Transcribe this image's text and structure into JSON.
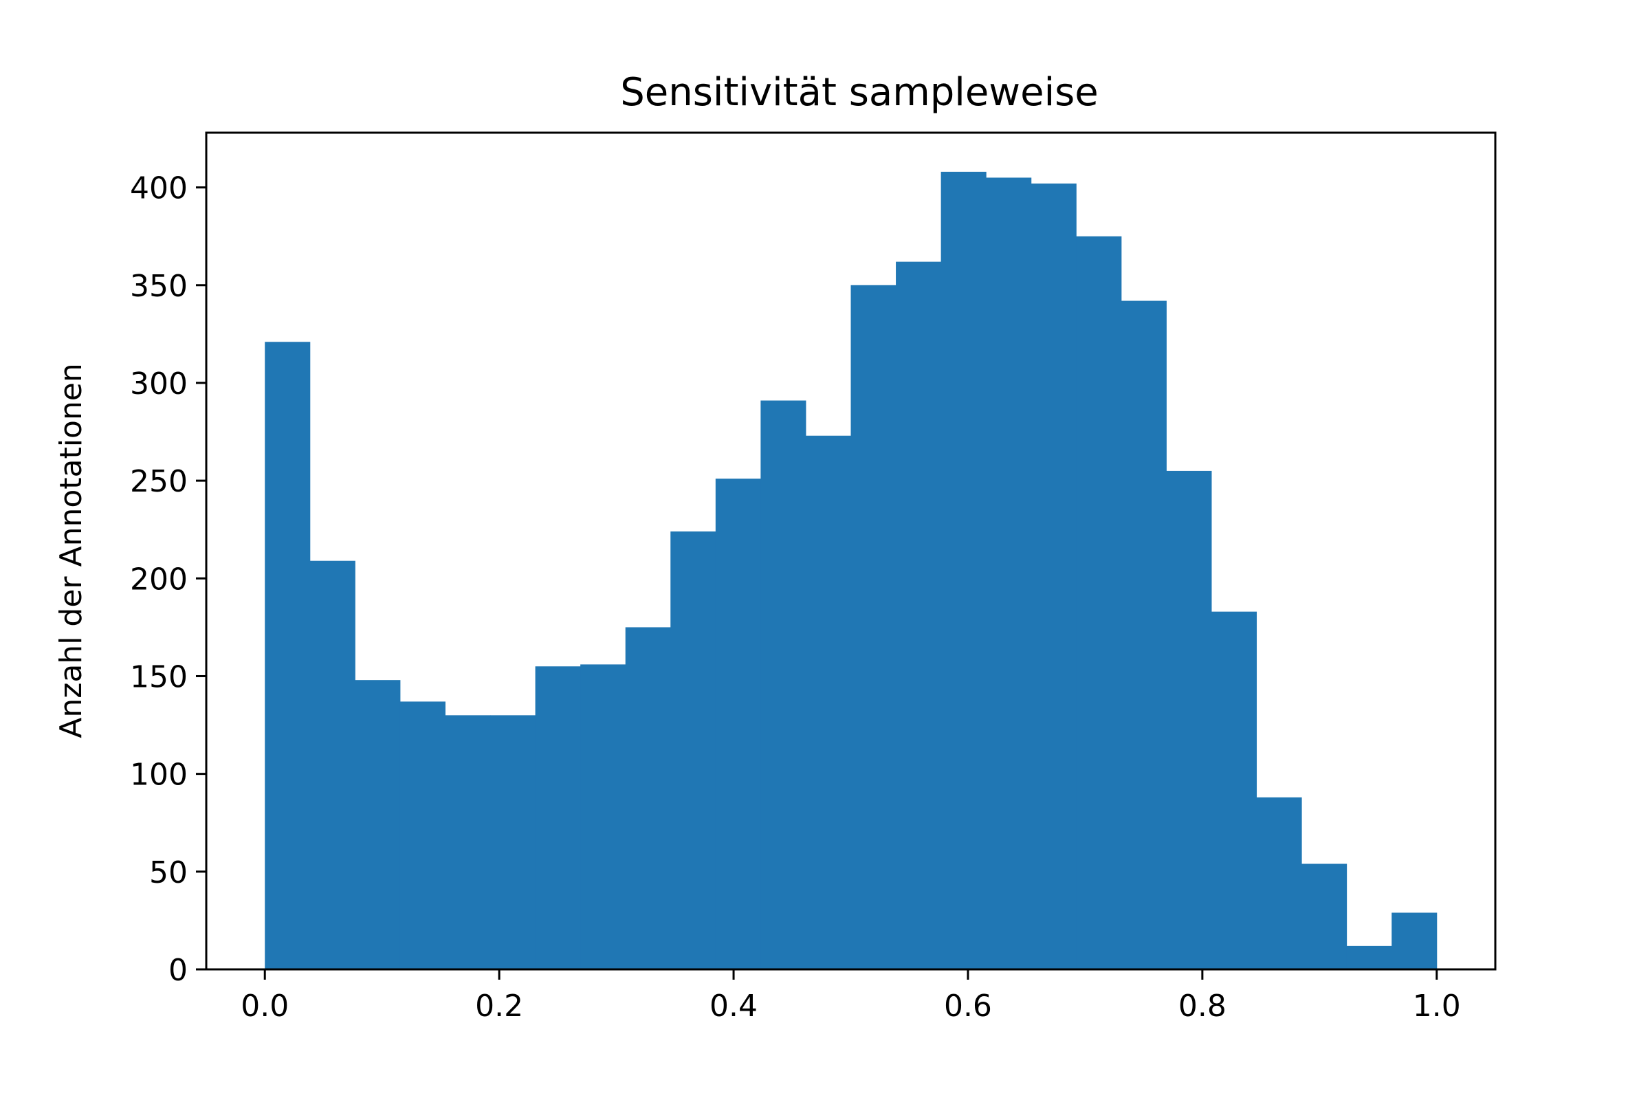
{
  "chart_data": {
    "type": "bar",
    "title": "Sensitivität sampleweise",
    "xlabel": "",
    "ylabel": "Anzahl der Annotationen",
    "bins": {
      "start": 0.0,
      "end": 1.0,
      "count": 26
    },
    "values": [
      321,
      209,
      148,
      137,
      130,
      130,
      155,
      156,
      175,
      224,
      251,
      291,
      273,
      350,
      362,
      408,
      405,
      402,
      375,
      342,
      255,
      183,
      88,
      54,
      12,
      29
    ],
    "xlim": [
      -0.05,
      1.05
    ],
    "ylim": [
      0,
      428
    ],
    "xticks": [
      0.0,
      0.2,
      0.4,
      0.6,
      0.8,
      1.0
    ],
    "xtick_labels": [
      "0.0",
      "0.2",
      "0.4",
      "0.6",
      "0.8",
      "1.0"
    ],
    "yticks": [
      0,
      50,
      100,
      150,
      200,
      250,
      300,
      350,
      400
    ],
    "ytick_labels": [
      "0",
      "50",
      "100",
      "150",
      "200",
      "250",
      "300",
      "350",
      "400"
    ],
    "grid": false,
    "bar_color": "#2077b4"
  }
}
